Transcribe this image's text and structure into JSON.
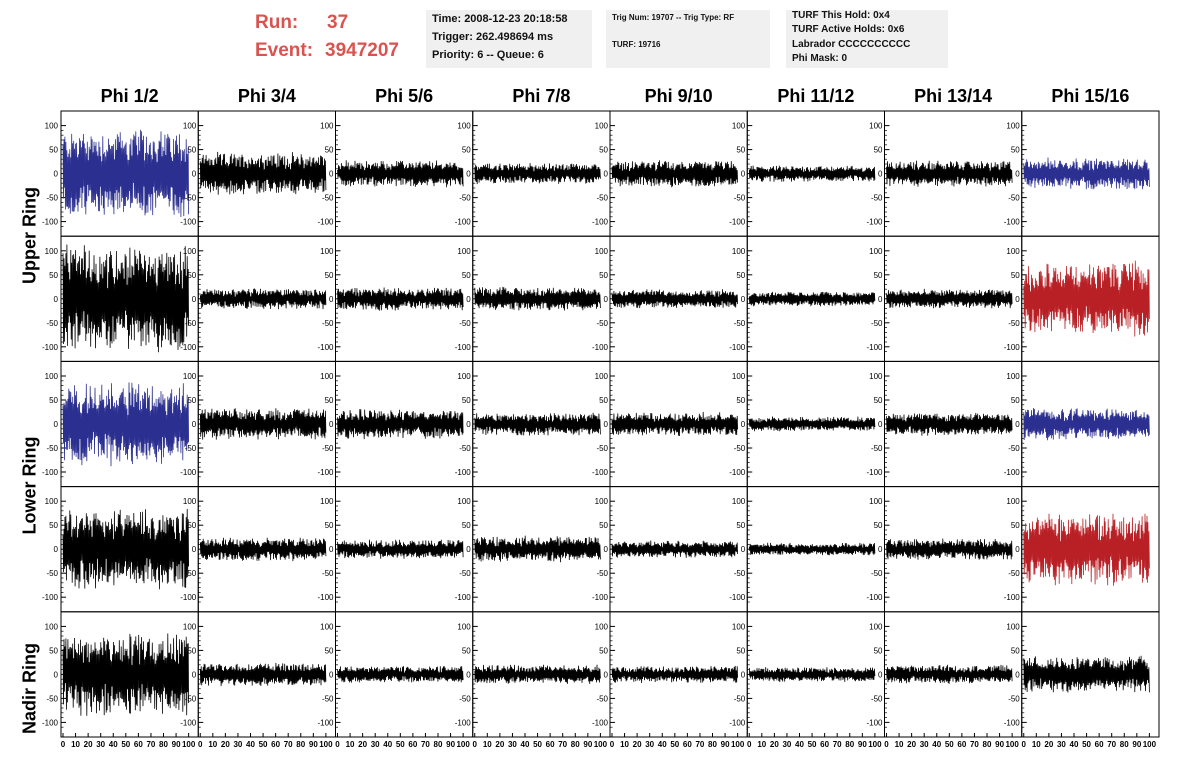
{
  "header": {
    "run_label": "Run:",
    "run_value": "37",
    "event_label": "Event:",
    "event_value": "3947207"
  },
  "info_box_1": {
    "time": "Time: 2008-12-23 20:18:58",
    "trigger": "Trigger: 262.498694 ms",
    "priority": "Priority: 6 -- Queue: 6"
  },
  "info_box_2": {
    "trig": "Trig Num: 19707 -- Trig Type: RF",
    "turf": "TURF: 19716"
  },
  "info_box_3": {
    "this_hold": "TURF This Hold: 0x4",
    "active_holds": "TURF Active Holds: 0x6",
    "labrador": "Labrador CCCCCCCCCC",
    "phi_mask": "Phi Mask: 0"
  },
  "columns": [
    "Phi 1/2",
    "Phi 3/4",
    "Phi 5/6",
    "Phi 7/8",
    "Phi 9/10",
    "Phi 11/12",
    "Phi 13/14",
    "Phi 15/16"
  ],
  "rings": [
    "Upper Ring",
    "Lower Ring",
    "Nadir Ring"
  ],
  "y_ticks": [
    "100",
    "50",
    "0",
    "-50",
    "-100"
  ],
  "x_ticks": [
    "0",
    "10",
    "20",
    "30",
    "40",
    "50",
    "60",
    "70",
    "80",
    "90",
    "100"
  ],
  "colors": {
    "blue": "#2b2f8f",
    "red": "#b82025",
    "black": "#000000",
    "accent": "#d9534f"
  },
  "chart_data": {
    "type": "line",
    "title": "",
    "xlim": [
      0,
      100
    ],
    "ylim": [
      -120,
      120
    ],
    "rows": 5,
    "cols": 8,
    "amplitudes": [
      [
        85,
        40,
        25,
        20,
        25,
        15,
        25,
        30
      ],
      [
        100,
        20,
        22,
        22,
        18,
        14,
        18,
        70
      ],
      [
        80,
        30,
        28,
        22,
        22,
        14,
        22,
        30
      ],
      [
        75,
        22,
        18,
        25,
        16,
        12,
        20,
        70
      ],
      [
        80,
        22,
        16,
        18,
        16,
        14,
        18,
        35
      ]
    ],
    "trace_colors": [
      [
        "blue",
        "black",
        "black",
        "black",
        "black",
        "black",
        "black",
        "blue"
      ],
      [
        "black",
        "black",
        "black",
        "black",
        "black",
        "black",
        "black",
        "red"
      ],
      [
        "blue",
        "black",
        "black",
        "black",
        "black",
        "black",
        "black",
        "blue"
      ],
      [
        "black",
        "black",
        "black",
        "black",
        "black",
        "black",
        "black",
        "red"
      ],
      [
        "black",
        "black",
        "black",
        "black",
        "black",
        "black",
        "black",
        "black"
      ]
    ]
  }
}
